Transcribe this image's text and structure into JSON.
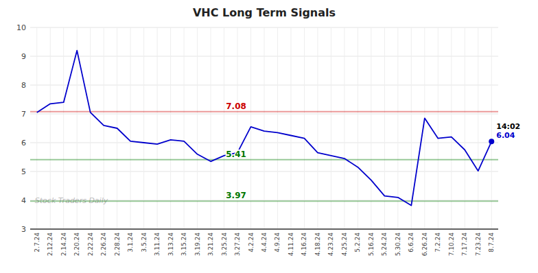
{
  "chart_data": {
    "type": "line",
    "title": "VHC Long Term Signals",
    "categories": [
      "2.7.24",
      "2.12.24",
      "2.14.24",
      "2.20.24",
      "2.22.24",
      "2.26.24",
      "2.28.24",
      "3.1.24",
      "3.5.24",
      "3.11.24",
      "3.13.24",
      "3.15.24",
      "3.19.24",
      "3.21.24",
      "3.25.24",
      "3.27.24",
      "4.2.24",
      "4.4.24",
      "4.9.24",
      "4.11.24",
      "4.16.24",
      "4.18.24",
      "4.23.24",
      "4.25.24",
      "5.2.24",
      "5.16.24",
      "5.24.24",
      "5.30.24",
      "6.6.24",
      "6.26.24",
      "7.2.24",
      "7.10.24",
      "7.17.24",
      "7.23.24",
      "8.7.24"
    ],
    "values": [
      7.05,
      7.35,
      7.4,
      9.2,
      7.05,
      6.6,
      6.5,
      6.05,
      6.0,
      5.95,
      6.1,
      6.05,
      5.6,
      5.35,
      5.55,
      5.65,
      6.55,
      6.4,
      6.35,
      6.25,
      6.15,
      5.65,
      5.55,
      5.45,
      5.15,
      4.7,
      4.15,
      4.1,
      3.82,
      6.85,
      6.15,
      6.2,
      5.75,
      5.02,
      6.04
    ],
    "color": "#0000cc",
    "ylim": [
      3.0,
      10.0
    ],
    "yticks": [
      3,
      4,
      5,
      6,
      7,
      8,
      9,
      10
    ],
    "grid": true,
    "hlines": [
      {
        "value": 7.08,
        "color": "#cc0000"
      },
      {
        "value": 5.41,
        "color": "#007700"
      },
      {
        "value": 3.97,
        "color": "#007700"
      }
    ],
    "annotations": [
      {
        "label": "14:02",
        "value": 6.04
      }
    ],
    "watermark": "Stock Traders Daily"
  }
}
